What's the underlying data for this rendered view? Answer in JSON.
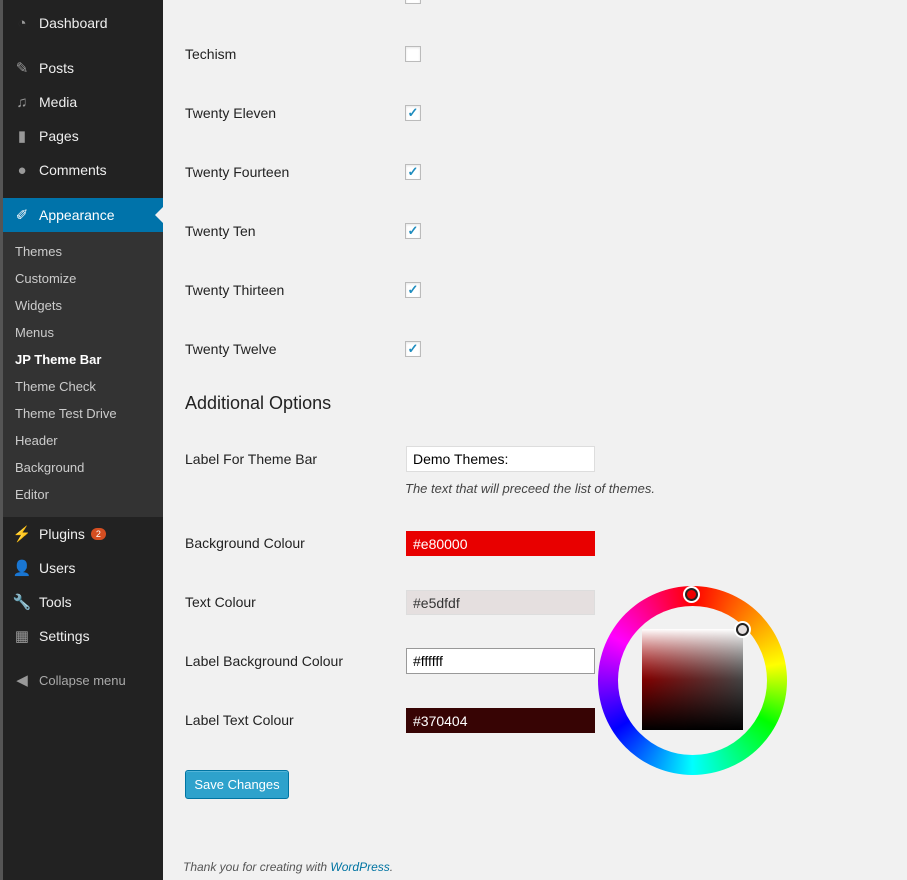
{
  "sidebar": {
    "items": [
      {
        "label": "Dashboard",
        "icon": "dashboard-icon"
      },
      {
        "label": "Posts",
        "icon": "pin-icon"
      },
      {
        "label": "Media",
        "icon": "media-icon"
      },
      {
        "label": "Pages",
        "icon": "pages-icon"
      },
      {
        "label": "Comments",
        "icon": "comments-icon"
      },
      {
        "label": "Appearance",
        "icon": "brush-icon"
      },
      {
        "label": "Plugins",
        "icon": "plugin-icon",
        "badge": "2"
      },
      {
        "label": "Users",
        "icon": "user-icon"
      },
      {
        "label": "Tools",
        "icon": "wrench-icon"
      },
      {
        "label": "Settings",
        "icon": "settings-icon"
      }
    ],
    "submenu": [
      "Themes",
      "Customize",
      "Widgets",
      "Menus",
      "JP Theme Bar",
      "Theme Check",
      "Theme Test Drive",
      "Header",
      "Background",
      "Editor"
    ],
    "collapse": "Collapse menu"
  },
  "themes": [
    {
      "name": "Techism",
      "checked": false
    },
    {
      "name": "Twenty Eleven",
      "checked": true
    },
    {
      "name": "Twenty Fourteen",
      "checked": true
    },
    {
      "name": "Twenty Ten",
      "checked": true
    },
    {
      "name": "Twenty Thirteen",
      "checked": true
    },
    {
      "name": "Twenty Twelve",
      "checked": true
    }
  ],
  "additional": {
    "heading": "Additional Options",
    "label_for_bar": "Label For Theme Bar",
    "label_value": "Demo Themes:",
    "label_desc": "The text that will preceed the list of themes.",
    "bg_colour": "Background Colour",
    "bg_value": "#e80000",
    "text_colour": "Text Colour",
    "text_value": "#e5dfdf",
    "label_bg_colour": "Label Background Colour",
    "label_bg_value": "#ffffff",
    "label_text_colour": "Label Text Colour",
    "label_text_value": "#370404"
  },
  "save_label": "Save Changes",
  "footer": {
    "text": "Thank you for creating with ",
    "link": "WordPress",
    "end": "."
  },
  "colors": {
    "accent": "#0073aa",
    "button": "#2ea2cc"
  }
}
